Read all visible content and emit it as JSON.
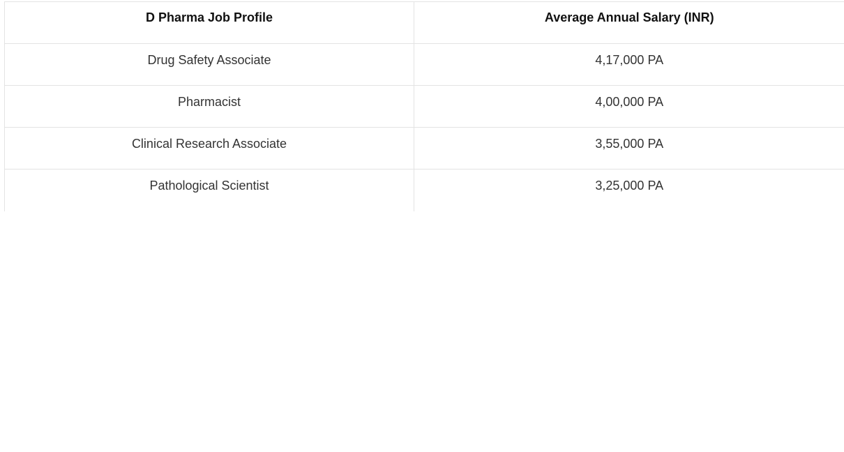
{
  "table": {
    "headers": [
      "D Pharma Job Profile",
      "Average Annual Salary (INR)"
    ],
    "rows": [
      {
        "profile": "Drug Safety Associate",
        "salary": "4,17,000 PA"
      },
      {
        "profile": "Pharmacist",
        "salary": "4,00,000 PA"
      },
      {
        "profile": "Clinical Research Associate",
        "salary": "3,55,000 PA"
      },
      {
        "profile": "Pathological Scientist",
        "salary": "3,25,000 PA"
      }
    ]
  }
}
